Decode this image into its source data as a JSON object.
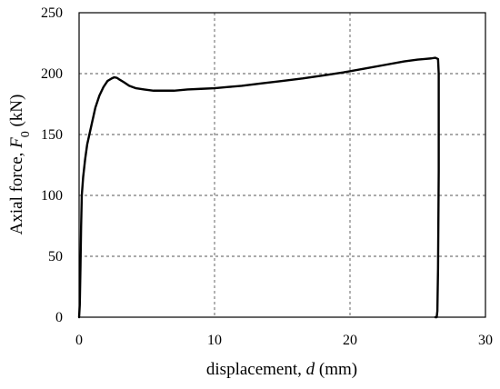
{
  "chart_data": {
    "type": "line",
    "xlabel_prefix": "displacement, ",
    "xlabel_var": "d",
    "xlabel_suffix": " (mm)",
    "ylabel_prefix": "Axial force, ",
    "ylabel_var": "F",
    "ylabel_sub": "0",
    "ylabel_suffix": " (kN)",
    "xlim": [
      0,
      30
    ],
    "ylim": [
      0,
      250
    ],
    "xticks": [
      0,
      10,
      20,
      30
    ],
    "xtick_labels": [
      "0",
      "10",
      "20",
      "30"
    ],
    "yticks": [
      0,
      50,
      100,
      150,
      200,
      250
    ],
    "ytick_labels": [
      "0",
      "50",
      "100",
      "150",
      "200",
      "250"
    ],
    "grid": "dashed",
    "line_color": "#000000",
    "series": [
      {
        "x": [
          0.0,
          0.05,
          0.1,
          0.15,
          0.2,
          0.3,
          0.45,
          0.6,
          0.8,
          1.0,
          1.2,
          1.5,
          1.8,
          2.1,
          2.4,
          2.6,
          2.8,
          3.0,
          3.3,
          3.7,
          4.2,
          4.8,
          5.5,
          6.2,
          7.0,
          8.0,
          9.0,
          10.0,
          11.0,
          12.0,
          13.5,
          15.0,
          16.5,
          18.0,
          19.5,
          21.0,
          22.5,
          24.0,
          25.0,
          25.5,
          26.0,
          26.3,
          26.5,
          26.55,
          26.55,
          26.5,
          26.45,
          26.4,
          26.3
        ],
        "y": [
          0,
          10,
          40,
          75,
          100,
          115,
          130,
          142,
          152,
          162,
          172,
          182,
          189,
          194,
          196,
          197,
          196.5,
          195,
          193,
          190,
          188,
          187,
          186,
          186,
          186,
          187,
          187.5,
          188,
          189,
          190,
          192,
          194,
          196,
          198.5,
          201,
          204,
          207,
          210,
          211.5,
          212,
          212.5,
          213,
          212,
          200,
          120,
          40,
          5,
          0,
          0
        ]
      }
    ]
  }
}
